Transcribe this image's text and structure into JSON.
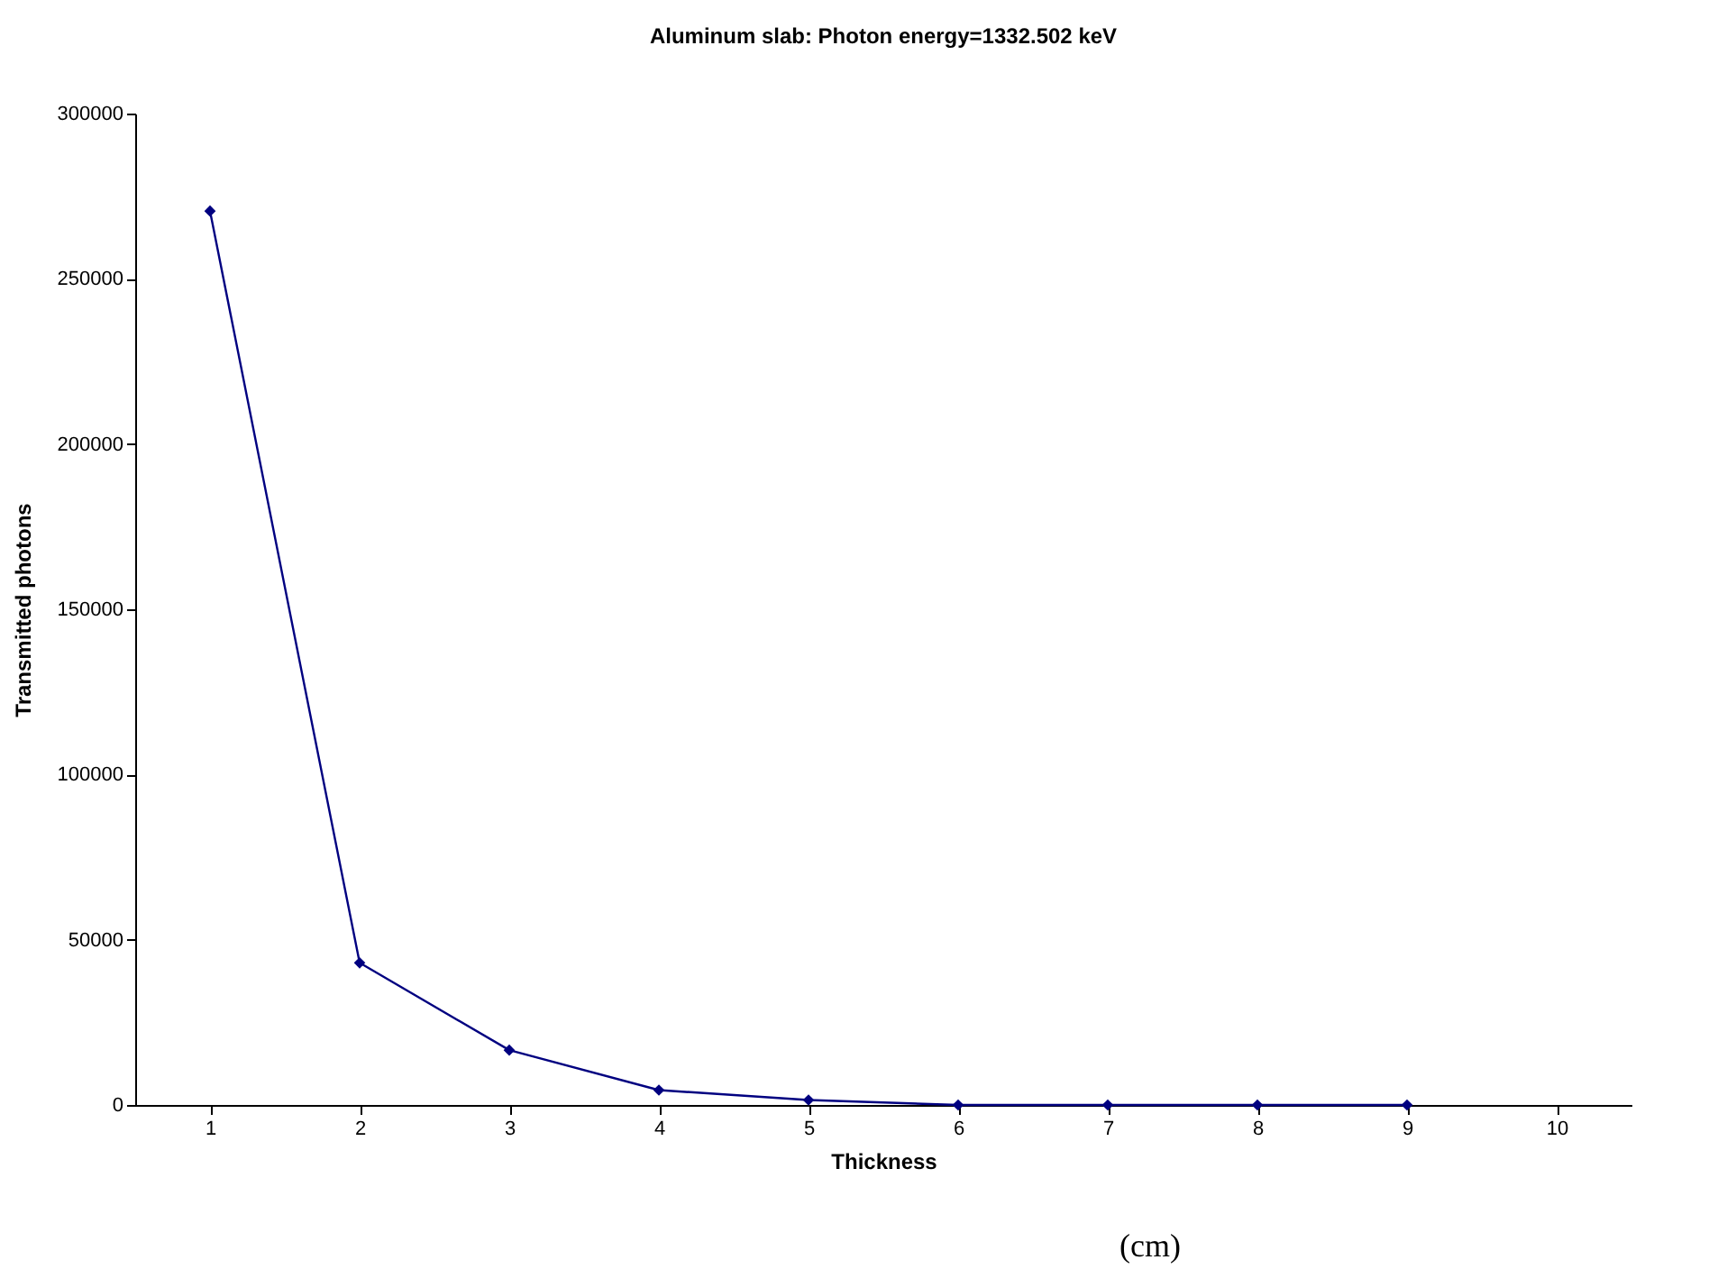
{
  "chart_data": {
    "type": "line",
    "title": "Aluminum slab: Photon energy=1332.502 keV",
    "xlabel": "Thickness",
    "ylabel": "Transmitted photons",
    "annotations": [
      "(cm)"
    ],
    "categories": [
      "1",
      "2",
      "3",
      "4",
      "5",
      "6",
      "7",
      "8",
      "9",
      "10"
    ],
    "series": [
      {
        "color": "#000080",
        "values": [
          270500,
          43000,
          16600,
          4500,
          1500,
          0,
          0,
          0,
          0,
          null
        ]
      }
    ],
    "ylim": [
      0,
      300000
    ],
    "yticks": [
      0,
      50000,
      100000,
      150000,
      200000,
      250000,
      300000
    ],
    "marker": "diamond",
    "line_style": "solid"
  }
}
